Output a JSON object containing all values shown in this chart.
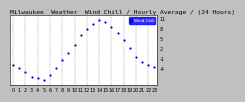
{
  "title": "Milwaukee  Weather  Wind Chill / Hourly Average / (24 Hours)",
  "hours": [
    0,
    1,
    2,
    3,
    4,
    5,
    6,
    7,
    8,
    9,
    10,
    11,
    12,
    13,
    14,
    15,
    16,
    17,
    18,
    19,
    20,
    21,
    22,
    23
  ],
  "wind_chill": [
    -3,
    -4,
    -5,
    -6.5,
    -7,
    -7.5,
    -6,
    -4,
    -1.5,
    0.5,
    3,
    6,
    8,
    9.5,
    10.5,
    10,
    8.5,
    6.5,
    4.5,
    2,
    -0.5,
    -2,
    -3,
    -3.5
  ],
  "dot_color": "#0000dd",
  "dot_size": 2.5,
  "bg_color": "#ffffff",
  "outer_bg": "#c0c0c0",
  "grid_color": "#888888",
  "title_color": "#000000",
  "title_fontsize": 4.5,
  "tick_fontsize": 3.5,
  "ylim": [
    -9,
    12
  ],
  "ytick_values": [
    -4,
    -1,
    2,
    5,
    8,
    11
  ],
  "ytick_labels": [
    "-4",
    "-1",
    "2",
    "5",
    "8",
    "11"
  ],
  "xlabel_hours": [
    0,
    1,
    2,
    3,
    4,
    5,
    6,
    7,
    8,
    9,
    10,
    11,
    12,
    13,
    14,
    15,
    16,
    17,
    18,
    19,
    20,
    21,
    22,
    23
  ],
  "legend_label": "Wind Chill",
  "legend_bg": "#0000ff",
  "legend_text": "#ffffff",
  "grid_positions": [
    0,
    2,
    4,
    6,
    8,
    10,
    12,
    14,
    16,
    18,
    20,
    22
  ]
}
